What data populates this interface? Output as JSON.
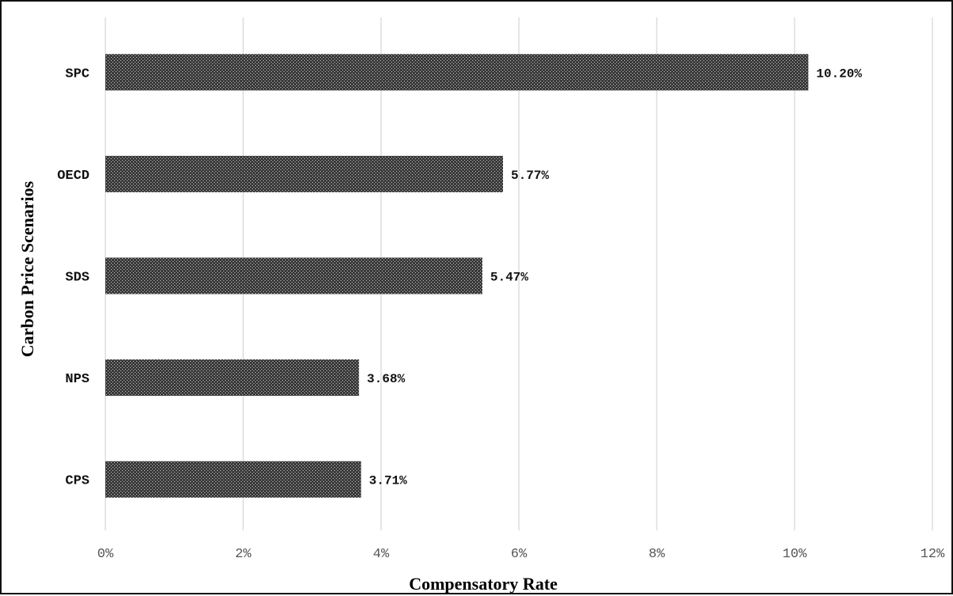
{
  "chart_data": {
    "type": "bar",
    "orientation": "horizontal",
    "title": "",
    "xlabel": "Compensatory Rate",
    "ylabel": "Carbon Price Scenarios",
    "categories": [
      "SPC",
      "OECD",
      "SDS",
      "NPS",
      "CPS"
    ],
    "values": [
      10.2,
      5.77,
      5.47,
      3.68,
      3.71
    ],
    "value_labels": [
      "10.20%",
      "5.77%",
      "5.47%",
      "3.68%",
      "3.71%"
    ],
    "xlim": [
      0,
      12
    ],
    "xticks": [
      0,
      2,
      4,
      6,
      8,
      10,
      12
    ],
    "xtick_labels": [
      "0%",
      "2%",
      "4%",
      "6%",
      "8%",
      "10%",
      "12%"
    ],
    "grid": "vertical",
    "legend": "none",
    "bar_fill": "crosshatch pattern, dark gray",
    "colors": {
      "bar_dark": "#3a3a3a",
      "bar_light": "#c8c8c8",
      "grid": "#d9d9d9",
      "frame": "#111111"
    }
  }
}
